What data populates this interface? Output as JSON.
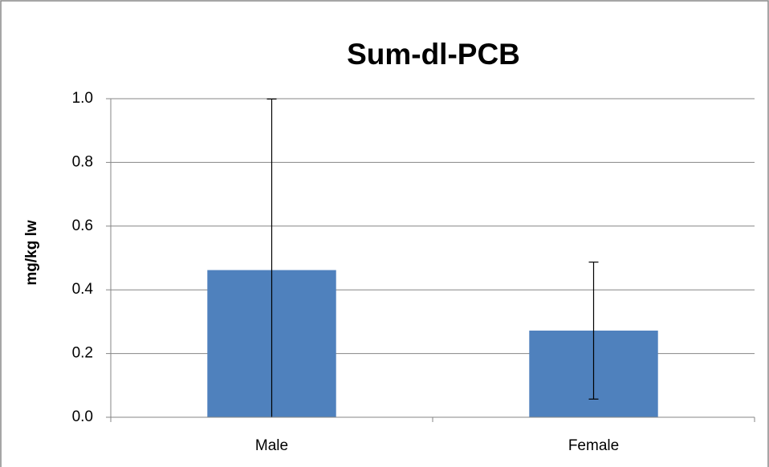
{
  "chart_data": {
    "type": "bar",
    "title": "Sum-dl-PCB",
    "y_label": "mg/kg lw",
    "categories": [
      "Male",
      "Female"
    ],
    "values": [
      0.462,
      0.272
    ],
    "errors": [
      0.537,
      0.215
    ],
    "color": "#4f81bd",
    "ylim": [
      0,
      1
    ],
    "yticks": [
      {
        "value": 0,
        "label": "0.0"
      },
      0.2,
      0.4,
      0.6,
      0.8,
      {
        "value": 1,
        "label": "1.0"
      }
    ],
    "grid": true
  }
}
